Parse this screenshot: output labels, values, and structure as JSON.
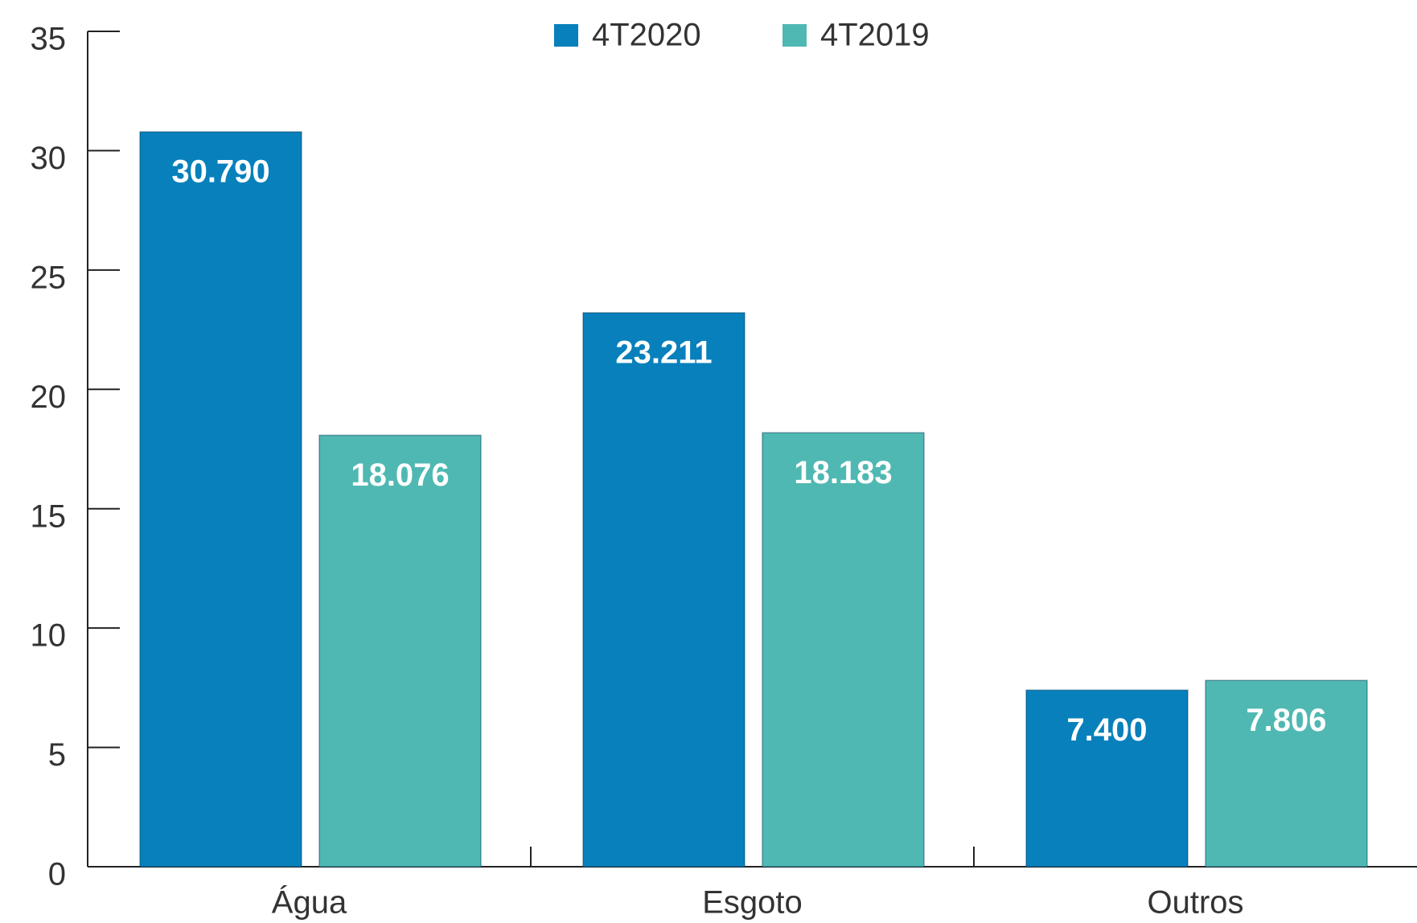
{
  "chart_data": {
    "type": "bar",
    "categories": [
      "Água",
      "Esgoto",
      "Outros"
    ],
    "series": [
      {
        "name": "4T2020",
        "color": "#0880bb",
        "values": [
          30.79,
          23.211,
          7.4
        ],
        "value_labels": [
          "30.790",
          "23.211",
          "7.400"
        ]
      },
      {
        "name": "4T2019",
        "color": "#50b8b2",
        "values": [
          18.076,
          18.183,
          7.806
        ],
        "value_labels": [
          "18.076",
          "18.183",
          "7.806"
        ]
      }
    ],
    "ylim": [
      0,
      35
    ],
    "yticks": [
      0,
      5,
      10,
      15,
      20,
      25,
      30,
      35
    ],
    "grid": false,
    "legend": "top"
  }
}
